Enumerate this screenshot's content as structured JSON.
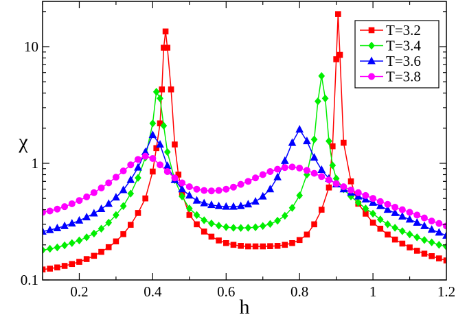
{
  "chart_data": {
    "type": "line",
    "xlabel": "h",
    "ylabel": "χ",
    "xlim": [
      0.1,
      1.2
    ],
    "ylim": [
      0.1,
      30
    ],
    "yscale": "log",
    "grid": false,
    "legend_position": "top-right",
    "x_ticks": [
      {
        "value": 0.2,
        "label": "0.2"
      },
      {
        "value": 0.4,
        "label": "0.4"
      },
      {
        "value": 0.6,
        "label": "0.6"
      },
      {
        "value": 0.8,
        "label": "0.8"
      },
      {
        "value": 1.0,
        "label": "1"
      },
      {
        "value": 1.2,
        "label": "1.2"
      }
    ],
    "y_ticks": [
      {
        "value": 0.1,
        "label": "0.1"
      },
      {
        "value": 1,
        "label": "1"
      },
      {
        "value": 10,
        "label": "10"
      }
    ],
    "series": [
      {
        "name": "T=3.2",
        "color": "#ff0000",
        "marker": "square",
        "x": [
          0.1,
          0.12,
          0.14,
          0.16,
          0.18,
          0.2,
          0.22,
          0.24,
          0.26,
          0.28,
          0.3,
          0.32,
          0.34,
          0.36,
          0.38,
          0.4,
          0.41,
          0.42,
          0.425,
          0.43,
          0.435,
          0.44,
          0.45,
          0.46,
          0.47,
          0.48,
          0.5,
          0.52,
          0.54,
          0.56,
          0.58,
          0.6,
          0.62,
          0.64,
          0.66,
          0.68,
          0.7,
          0.72,
          0.74,
          0.76,
          0.78,
          0.8,
          0.82,
          0.84,
          0.86,
          0.88,
          0.89,
          0.9,
          0.905,
          0.91,
          0.92,
          0.94,
          0.96,
          0.98,
          1.0,
          1.02,
          1.04,
          1.06,
          1.08,
          1.1,
          1.12,
          1.14,
          1.16,
          1.18,
          1.2
        ],
        "y": [
          0.123,
          0.125,
          0.128,
          0.132,
          0.137,
          0.143,
          0.151,
          0.161,
          0.174,
          0.191,
          0.214,
          0.247,
          0.297,
          0.375,
          0.5,
          0.85,
          1.35,
          2.2,
          4.3,
          9.8,
          13.5,
          9.8,
          4.3,
          1.45,
          0.8,
          0.55,
          0.36,
          0.3,
          0.26,
          0.235,
          0.218,
          0.207,
          0.2,
          0.196,
          0.194,
          0.194,
          0.194,
          0.195,
          0.196,
          0.2,
          0.207,
          0.22,
          0.245,
          0.3,
          0.4,
          0.62,
          1.4,
          7.8,
          19,
          8.5,
          1.5,
          0.7,
          0.45,
          0.37,
          0.31,
          0.275,
          0.245,
          0.222,
          0.205,
          0.19,
          0.178,
          0.168,
          0.16,
          0.153,
          0.147
        ]
      },
      {
        "name": "T=3.4",
        "color": "#00ee00",
        "marker": "diamond",
        "x": [
          0.1,
          0.12,
          0.14,
          0.16,
          0.18,
          0.2,
          0.22,
          0.24,
          0.26,
          0.28,
          0.3,
          0.32,
          0.34,
          0.36,
          0.38,
          0.4,
          0.41,
          0.42,
          0.43,
          0.44,
          0.46,
          0.48,
          0.5,
          0.52,
          0.54,
          0.56,
          0.58,
          0.6,
          0.62,
          0.64,
          0.66,
          0.68,
          0.7,
          0.72,
          0.74,
          0.76,
          0.78,
          0.8,
          0.82,
          0.84,
          0.85,
          0.86,
          0.87,
          0.88,
          0.89,
          0.9,
          0.92,
          0.94,
          0.96,
          0.98,
          1.0,
          1.02,
          1.04,
          1.06,
          1.08,
          1.1,
          1.12,
          1.14,
          1.16,
          1.18,
          1.2
        ],
        "y": [
          0.18,
          0.185,
          0.19,
          0.198,
          0.207,
          0.218,
          0.232,
          0.25,
          0.275,
          0.31,
          0.36,
          0.43,
          0.55,
          0.75,
          1.12,
          2.2,
          4.1,
          3.6,
          2.1,
          1.25,
          0.72,
          0.52,
          0.41,
          0.36,
          0.325,
          0.305,
          0.292,
          0.284,
          0.28,
          0.279,
          0.28,
          0.283,
          0.29,
          0.302,
          0.322,
          0.355,
          0.415,
          0.53,
          0.8,
          1.6,
          3.4,
          5.6,
          3.6,
          1.55,
          0.96,
          0.74,
          0.6,
          0.52,
          0.46,
          0.41,
          0.37,
          0.33,
          0.3,
          0.28,
          0.262,
          0.246,
          0.232,
          0.22,
          0.21,
          0.2,
          0.193
        ]
      },
      {
        "name": "T=3.6",
        "color": "#0000ff",
        "marker": "triangle",
        "x": [
          0.1,
          0.12,
          0.14,
          0.16,
          0.18,
          0.2,
          0.22,
          0.24,
          0.26,
          0.28,
          0.3,
          0.32,
          0.34,
          0.36,
          0.38,
          0.4,
          0.42,
          0.44,
          0.46,
          0.48,
          0.5,
          0.52,
          0.54,
          0.56,
          0.58,
          0.6,
          0.62,
          0.64,
          0.66,
          0.68,
          0.7,
          0.72,
          0.74,
          0.76,
          0.78,
          0.8,
          0.82,
          0.84,
          0.86,
          0.88,
          0.9,
          0.92,
          0.94,
          0.96,
          0.98,
          1.0,
          1.02,
          1.04,
          1.06,
          1.08,
          1.1,
          1.12,
          1.14,
          1.16,
          1.18,
          1.2
        ],
        "y": [
          0.26,
          0.268,
          0.278,
          0.29,
          0.305,
          0.323,
          0.345,
          0.372,
          0.406,
          0.45,
          0.51,
          0.59,
          0.72,
          0.92,
          1.25,
          1.75,
          1.45,
          0.95,
          0.72,
          0.6,
          0.53,
          0.48,
          0.455,
          0.44,
          0.43,
          0.425,
          0.425,
          0.43,
          0.445,
          0.47,
          0.52,
          0.6,
          0.76,
          1.05,
          1.5,
          1.95,
          1.55,
          1.12,
          0.88,
          0.74,
          0.66,
          0.6,
          0.56,
          0.52,
          0.49,
          0.46,
          0.43,
          0.4,
          0.375,
          0.35,
          0.33,
          0.31,
          0.29,
          0.27,
          0.255,
          0.24
        ]
      },
      {
        "name": "T=3.8",
        "color": "#ff00ff",
        "marker": "circle",
        "x": [
          0.1,
          0.12,
          0.14,
          0.16,
          0.18,
          0.2,
          0.22,
          0.24,
          0.26,
          0.28,
          0.3,
          0.32,
          0.34,
          0.36,
          0.38,
          0.4,
          0.42,
          0.44,
          0.46,
          0.48,
          0.5,
          0.52,
          0.54,
          0.56,
          0.58,
          0.6,
          0.62,
          0.64,
          0.66,
          0.68,
          0.7,
          0.72,
          0.74,
          0.76,
          0.78,
          0.8,
          0.82,
          0.84,
          0.86,
          0.88,
          0.9,
          0.92,
          0.94,
          0.96,
          0.98,
          1.0,
          1.02,
          1.04,
          1.06,
          1.08,
          1.1,
          1.12,
          1.14,
          1.16,
          1.18,
          1.2
        ],
        "y": [
          0.38,
          0.39,
          0.405,
          0.425,
          0.45,
          0.48,
          0.515,
          0.56,
          0.615,
          0.68,
          0.76,
          0.86,
          0.97,
          1.08,
          1.15,
          1.1,
          0.97,
          0.85,
          0.75,
          0.68,
          0.63,
          0.6,
          0.585,
          0.58,
          0.585,
          0.6,
          0.625,
          0.66,
          0.7,
          0.75,
          0.8,
          0.85,
          0.89,
          0.92,
          0.93,
          0.91,
          0.87,
          0.82,
          0.77,
          0.72,
          0.67,
          0.63,
          0.59,
          0.56,
          0.53,
          0.5,
          0.47,
          0.445,
          0.42,
          0.4,
          0.38,
          0.36,
          0.34,
          0.32,
          0.305,
          0.29
        ]
      }
    ]
  }
}
